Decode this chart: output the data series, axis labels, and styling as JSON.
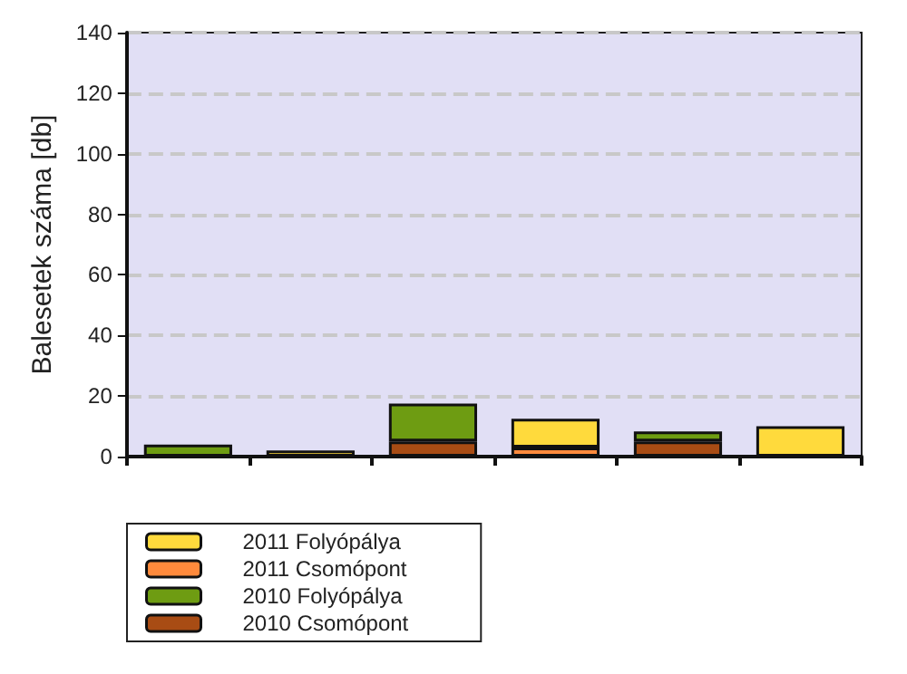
{
  "chart_data": {
    "type": "bar",
    "stacked": true,
    "ylabel": "Balesetek száma [db]",
    "categories": [
      null,
      null,
      null,
      null,
      null,
      null
    ],
    "series": [
      {
        "name": "2010 Csomópont",
        "color": "#a84c14",
        "values": [
          null,
          null,
          5,
          null,
          5,
          null
        ]
      },
      {
        "name": "2010 Folyópálya",
        "color": "#6e9c12",
        "values": [
          4,
          null,
          12.5,
          null,
          3.3,
          null
        ]
      },
      {
        "name": "2011 Csomópont",
        "color": "#ff8a3c",
        "values": [
          null,
          null,
          null,
          3,
          null,
          null
        ]
      },
      {
        "name": "2011 Folyópálya",
        "color": "#ffda3c",
        "values": [
          null,
          2,
          null,
          9.5,
          null,
          10
        ]
      }
    ],
    "ylim": [
      0,
      140
    ],
    "yticks": [
      0,
      20,
      40,
      60,
      80,
      100,
      120,
      140
    ],
    "grid": "y",
    "legend": "bottom left",
    "tick_labels": "y"
  }
}
